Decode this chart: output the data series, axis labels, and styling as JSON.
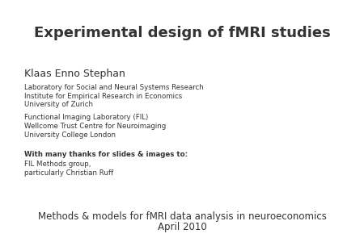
{
  "title": "Experimental design of fMRI studies",
  "title_fontsize": 13,
  "background_color": "#ffffff",
  "text_color": "#333333",
  "name": "Klaas Enno Stephan",
  "name_fontsize": 9,
  "affil1_lines": [
    "Laboratory for Social and Neural Systems Research",
    "Institute for Empirical Research in Economics",
    "University of Zurich"
  ],
  "affil2_lines": [
    "Functional Imaging Laboratory (FIL)",
    "Wellcome Trust Centre for Neuroimaging",
    "University College London"
  ],
  "thanks_bold": "With many thanks for slides & images to:",
  "thanks_lines": [
    "FIL Methods group,",
    "particularly Christian Ruff"
  ],
  "footer_line1": "Methods & models for fMRI data analysis in neuroeconomics",
  "footer_line2": "April 2010",
  "footer_fontsize": 8.5,
  "affil_fontsize": 6.2,
  "thanks_fontsize": 6.2
}
